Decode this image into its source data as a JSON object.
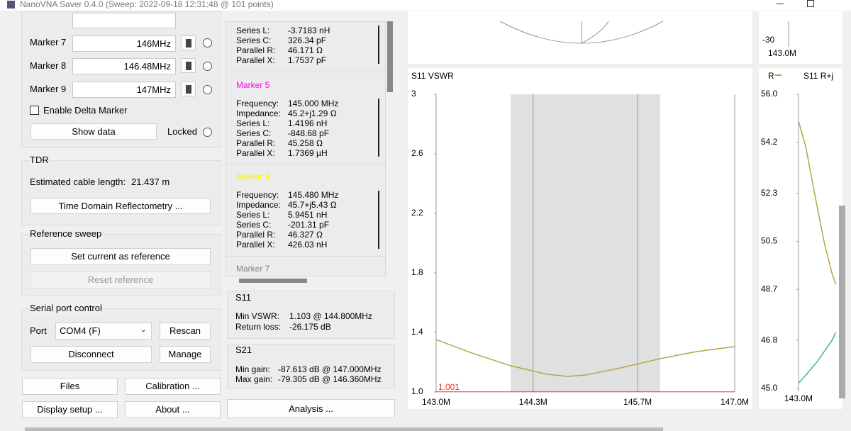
{
  "window": {
    "title": "NanoVNA Saver 0.4.0 (Sweep: 2022-09-18 12:31:48 @ 101 points)"
  },
  "markers": [
    {
      "label": "Marker 7",
      "frequency": "146MHz"
    },
    {
      "label": "Marker 8",
      "frequency": "146.48MHz"
    },
    {
      "label": "Marker 9",
      "frequency": "147MHz"
    }
  ],
  "delta_marker": "Enable Delta Marker",
  "show_data": "Show data",
  "locked": "Locked",
  "tdr": {
    "title": "TDR",
    "cable_label": "Estimated cable length:",
    "cable_value": "21.437 m",
    "button": "Time Domain Reflectometry ..."
  },
  "reference": {
    "title": "Reference sweep",
    "set_button": "Set current as reference",
    "reset_button": "Reset reference"
  },
  "serial": {
    "title": "Serial port control",
    "port_label": "Port",
    "port": "COM4 (F)",
    "rescan": "Rescan",
    "disconnect": "Disconnect",
    "manage": "Manage"
  },
  "buttons": {
    "files": "Files",
    "calibration": "Calibration ...",
    "display_setup": "Display setup ...",
    "about": "About ...",
    "analysis": "Analysis ..."
  },
  "marker_details": [
    {
      "lines": [
        [
          "Series L:",
          "-3.7183 nH"
        ],
        [
          "Series C:",
          "326.34 pF"
        ],
        [
          "Parallel R:",
          "46.171 Ω"
        ],
        [
          "Parallel X:",
          "1.7537 pF"
        ]
      ]
    },
    {
      "title": "Marker 5",
      "title_color": "#ff00ff",
      "lines": [
        [
          "Frequency:",
          "145.000 MHz"
        ],
        [
          "Impedance:",
          "45.2+j1.29 Ω"
        ],
        [
          "Series L:",
          "1.4196 nH"
        ],
        [
          "Series C:",
          "-848.68 pF"
        ],
        [
          "Parallel R:",
          "45.258 Ω"
        ],
        [
          "Parallel X:",
          "1.7369 µH"
        ]
      ]
    },
    {
      "title": "Marker 6",
      "title_color": "#f5f500",
      "lines": [
        [
          "Frequency:",
          "145.480 MHz"
        ],
        [
          "Impedance:",
          "45.7+j5.43 Ω"
        ],
        [
          "Series L:",
          "5.9451 nH"
        ],
        [
          "Series C:",
          "-201.31 pF"
        ],
        [
          "Parallel R:",
          "46.327 Ω"
        ],
        [
          "Parallel X:",
          "426.03 nH"
        ]
      ]
    },
    {
      "title": "Marker 7",
      "title_color": "#808080"
    }
  ],
  "s11": {
    "title": "S11",
    "lines": [
      [
        "Min VSWR:",
        "1.103 @ 144.800MHz"
      ],
      [
        "Return loss:",
        "-26.175 dB"
      ]
    ]
  },
  "s21": {
    "title": "S21",
    "lines": [
      [
        "Min gain:",
        "-87.613 dB @ 147.000MHz"
      ],
      [
        "Max gain:",
        "-79.305 dB @ 146.360MHz"
      ]
    ]
  },
  "top_chart": {
    "ytick": -30,
    "xtick": "143.0M"
  },
  "chart_data": [
    {
      "type": "line",
      "title": "S11 VSWR",
      "x": [
        143.0,
        143.45,
        144.0,
        144.48,
        144.76,
        145.0,
        145.43,
        146.0,
        146.48,
        147.0
      ],
      "series": [
        {
          "color": "#b5a642",
          "values": [
            1.352,
            1.267,
            1.176,
            1.12,
            1.105,
            1.114,
            1.157,
            1.224,
            1.271,
            1.305
          ]
        }
      ],
      "xlim": [
        143,
        147
      ],
      "ylim": [
        1,
        3
      ],
      "xticks": [
        {
          "value": 143,
          "label": "143.0M"
        },
        {
          "value": 144.3,
          "label": "144.3M"
        },
        {
          "value": 145.7,
          "label": "145.7M"
        },
        {
          "value": 147,
          "label": "147.0M"
        }
      ],
      "yticks": [
        {
          "value": 1,
          "label": "1.0"
        },
        1.4,
        1.8,
        2.2,
        2.6,
        3
      ],
      "grid": true,
      "span": [
        144,
        146
      ],
      "reference_line": 1.001
    },
    {
      "type": "line",
      "title": "R",
      "subtitle": "S11 R+j",
      "x": [
        143.0,
        143.1,
        143.25,
        143.35,
        143.45,
        143.5
      ],
      "series": [
        {
          "color": "#b5a642",
          "values": [
            55.0,
            54.0,
            51.8,
            50.4,
            49.3,
            48.9
          ]
        },
        {
          "color": "#3cb3a8",
          "values": [
            45.2,
            45.5,
            46.0,
            46.4,
            46.8,
            47.1
          ]
        }
      ],
      "xlim": [
        143,
        147
      ],
      "ylim": [
        45,
        56
      ],
      "xticks": [
        {
          "value": 143,
          "label": "143.0M"
        }
      ],
      "yticks": [
        {
          "value": 45,
          "label": "45.0"
        },
        46.8,
        48.7,
        50.5,
        52.3,
        54.2,
        {
          "value": 56,
          "label": "56.0"
        }
      ]
    }
  ]
}
